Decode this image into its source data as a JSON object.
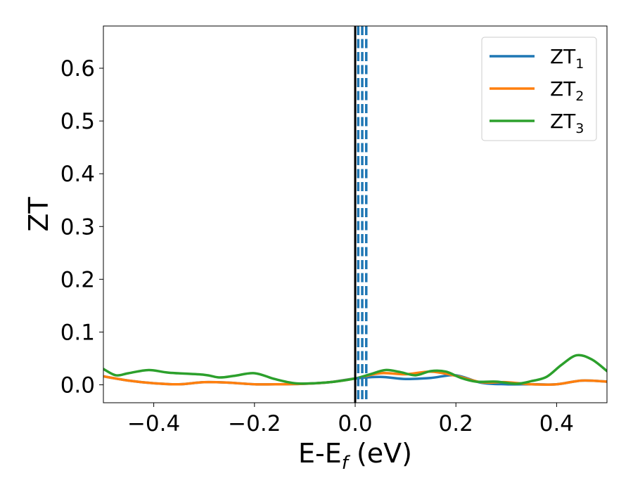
{
  "chart_data": {
    "type": "line",
    "xlabel": {
      "base": "E-E",
      "sub": "f",
      "suffix": " (eV)"
    },
    "ylabel": "ZT",
    "xlim": [
      -0.5,
      0.5
    ],
    "ylim": [
      -0.034,
      0.68
    ],
    "xticks": [
      -0.4,
      -0.2,
      0.0,
      0.2,
      0.4
    ],
    "xtick_labels": [
      "−0.4",
      "−0.2",
      "0.0",
      "0.2",
      "0.4"
    ],
    "yticks": [
      0.0,
      0.1,
      0.2,
      0.3,
      0.4,
      0.5,
      0.6
    ],
    "ytick_labels": [
      "0.0",
      "0.1",
      "0.2",
      "0.3",
      "0.4",
      "0.5",
      "0.6"
    ],
    "grid": false,
    "legend_position": "top-right",
    "vertical_lines": [
      {
        "x": 0.0,
        "color": "#000000",
        "style": "solid"
      },
      {
        "x": 0.006,
        "color": "#1f77b4",
        "style": "dashed"
      },
      {
        "x": 0.014,
        "color": "#1f77b4",
        "style": "dashed"
      },
      {
        "x": 0.022,
        "color": "#1f77b4",
        "style": "dashed"
      }
    ],
    "series": [
      {
        "name": "ZT",
        "name_sub": "1",
        "color": "#1f77b4",
        "x": [
          -0.5,
          -0.45,
          -0.4,
          -0.35,
          -0.3,
          -0.25,
          -0.2,
          -0.15,
          -0.1,
          -0.05,
          0.0,
          0.05,
          0.1,
          0.15,
          0.2,
          0.25,
          0.3,
          0.35,
          0.4,
          0.45,
          0.5
        ],
        "y": [
          0.016,
          0.008,
          0.003,
          0.001,
          0.005,
          0.004,
          0.001,
          0.001,
          0.002,
          0.005,
          0.012,
          0.015,
          0.011,
          0.013,
          0.018,
          0.004,
          0.001,
          0.001,
          0.001,
          0.008,
          0.006
        ]
      },
      {
        "name": "ZT",
        "name_sub": "2",
        "color": "#ff7f0e",
        "x": [
          -0.5,
          -0.45,
          -0.4,
          -0.35,
          -0.3,
          -0.25,
          -0.2,
          -0.15,
          -0.1,
          -0.05,
          0.0,
          0.05,
          0.1,
          0.15,
          0.2,
          0.25,
          0.3,
          0.35,
          0.4,
          0.45,
          0.5
        ],
        "y": [
          0.016,
          0.008,
          0.003,
          0.001,
          0.005,
          0.004,
          0.001,
          0.001,
          0.002,
          0.005,
          0.012,
          0.022,
          0.02,
          0.025,
          0.017,
          0.005,
          0.005,
          0.001,
          0.001,
          0.008,
          0.006
        ]
      },
      {
        "name": "ZT",
        "name_sub": "3",
        "color": "#2ca02c",
        "x": [
          -0.5,
          -0.475,
          -0.45,
          -0.41,
          -0.37,
          -0.3,
          -0.27,
          -0.24,
          -0.2,
          -0.16,
          -0.12,
          -0.08,
          -0.04,
          0.0,
          0.03,
          0.06,
          0.09,
          0.12,
          0.15,
          0.18,
          0.21,
          0.24,
          0.28,
          0.32,
          0.35,
          0.38,
          0.41,
          0.44,
          0.47,
          0.5
        ],
        "y": [
          0.03,
          0.018,
          0.022,
          0.028,
          0.023,
          0.019,
          0.014,
          0.017,
          0.022,
          0.011,
          0.003,
          0.003,
          0.006,
          0.012,
          0.02,
          0.028,
          0.024,
          0.018,
          0.026,
          0.025,
          0.013,
          0.006,
          0.006,
          0.002,
          0.007,
          0.015,
          0.038,
          0.056,
          0.048,
          0.026
        ]
      }
    ]
  }
}
